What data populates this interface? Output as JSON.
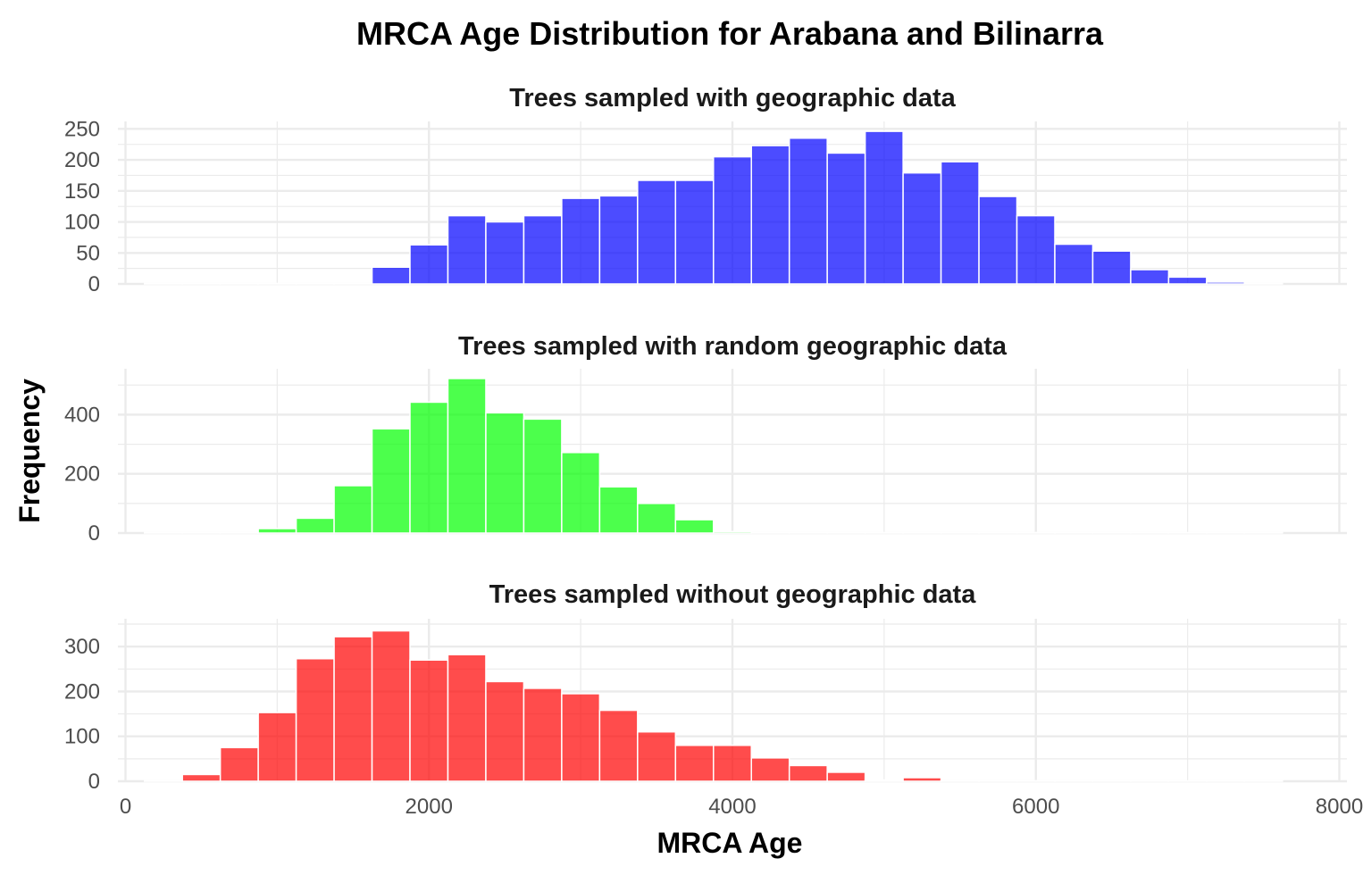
{
  "chart_data": {
    "type": "bar",
    "title": "MRCA Age Distribution for Arabana and Bilinarra",
    "xlabel": "MRCA Age",
    "ylabel": "Frequency",
    "xlim": [
      -50,
      8050
    ],
    "x_ticks": [
      0,
      2000,
      4000,
      6000,
      8000
    ],
    "bin_width": 250,
    "bin_centers": [
      250,
      500,
      750,
      1000,
      1250,
      1500,
      1750,
      2000,
      2250,
      2500,
      2750,
      3000,
      3250,
      3500,
      3750,
      4000,
      4250,
      4500,
      4750,
      5000,
      5250,
      5500,
      5750,
      6000,
      6250,
      6500,
      6750,
      7000,
      7250,
      7500
    ],
    "grid": true,
    "panels": [
      {
        "facet_title": "Trees sampled with geographic data",
        "color": "#0000FF",
        "ylim": [
          0,
          262
        ],
        "y_ticks": [
          0,
          50,
          100,
          150,
          200,
          250
        ],
        "values": [
          0,
          0,
          0,
          0,
          0,
          0,
          27,
          63,
          110,
          100,
          110,
          138,
          142,
          167,
          167,
          205,
          223,
          235,
          211,
          246,
          179,
          197,
          141,
          110,
          64,
          53,
          23,
          11,
          3,
          0
        ]
      },
      {
        "facet_title": "Trees sampled with random geographic data",
        "color": "#00FF00",
        "ylim": [
          0,
          555
        ],
        "y_ticks": [
          0,
          200,
          400
        ],
        "values": [
          0,
          0,
          0,
          15,
          50,
          160,
          352,
          442,
          522,
          406,
          385,
          272,
          156,
          100,
          45,
          5,
          0,
          0,
          0,
          0,
          0,
          0,
          0,
          0,
          0,
          0,
          0,
          0,
          0,
          0
        ]
      },
      {
        "facet_title": "Trees sampled without geographic data",
        "color": "#FF0000",
        "ylim": [
          0,
          362
        ],
        "y_ticks": [
          0,
          100,
          200,
          300
        ],
        "values": [
          0,
          15,
          75,
          153,
          273,
          322,
          335,
          270,
          282,
          222,
          207,
          195,
          158,
          110,
          80,
          80,
          52,
          35,
          20,
          3,
          8,
          0,
          0,
          0,
          0,
          0,
          0,
          0,
          0,
          0
        ]
      }
    ]
  }
}
